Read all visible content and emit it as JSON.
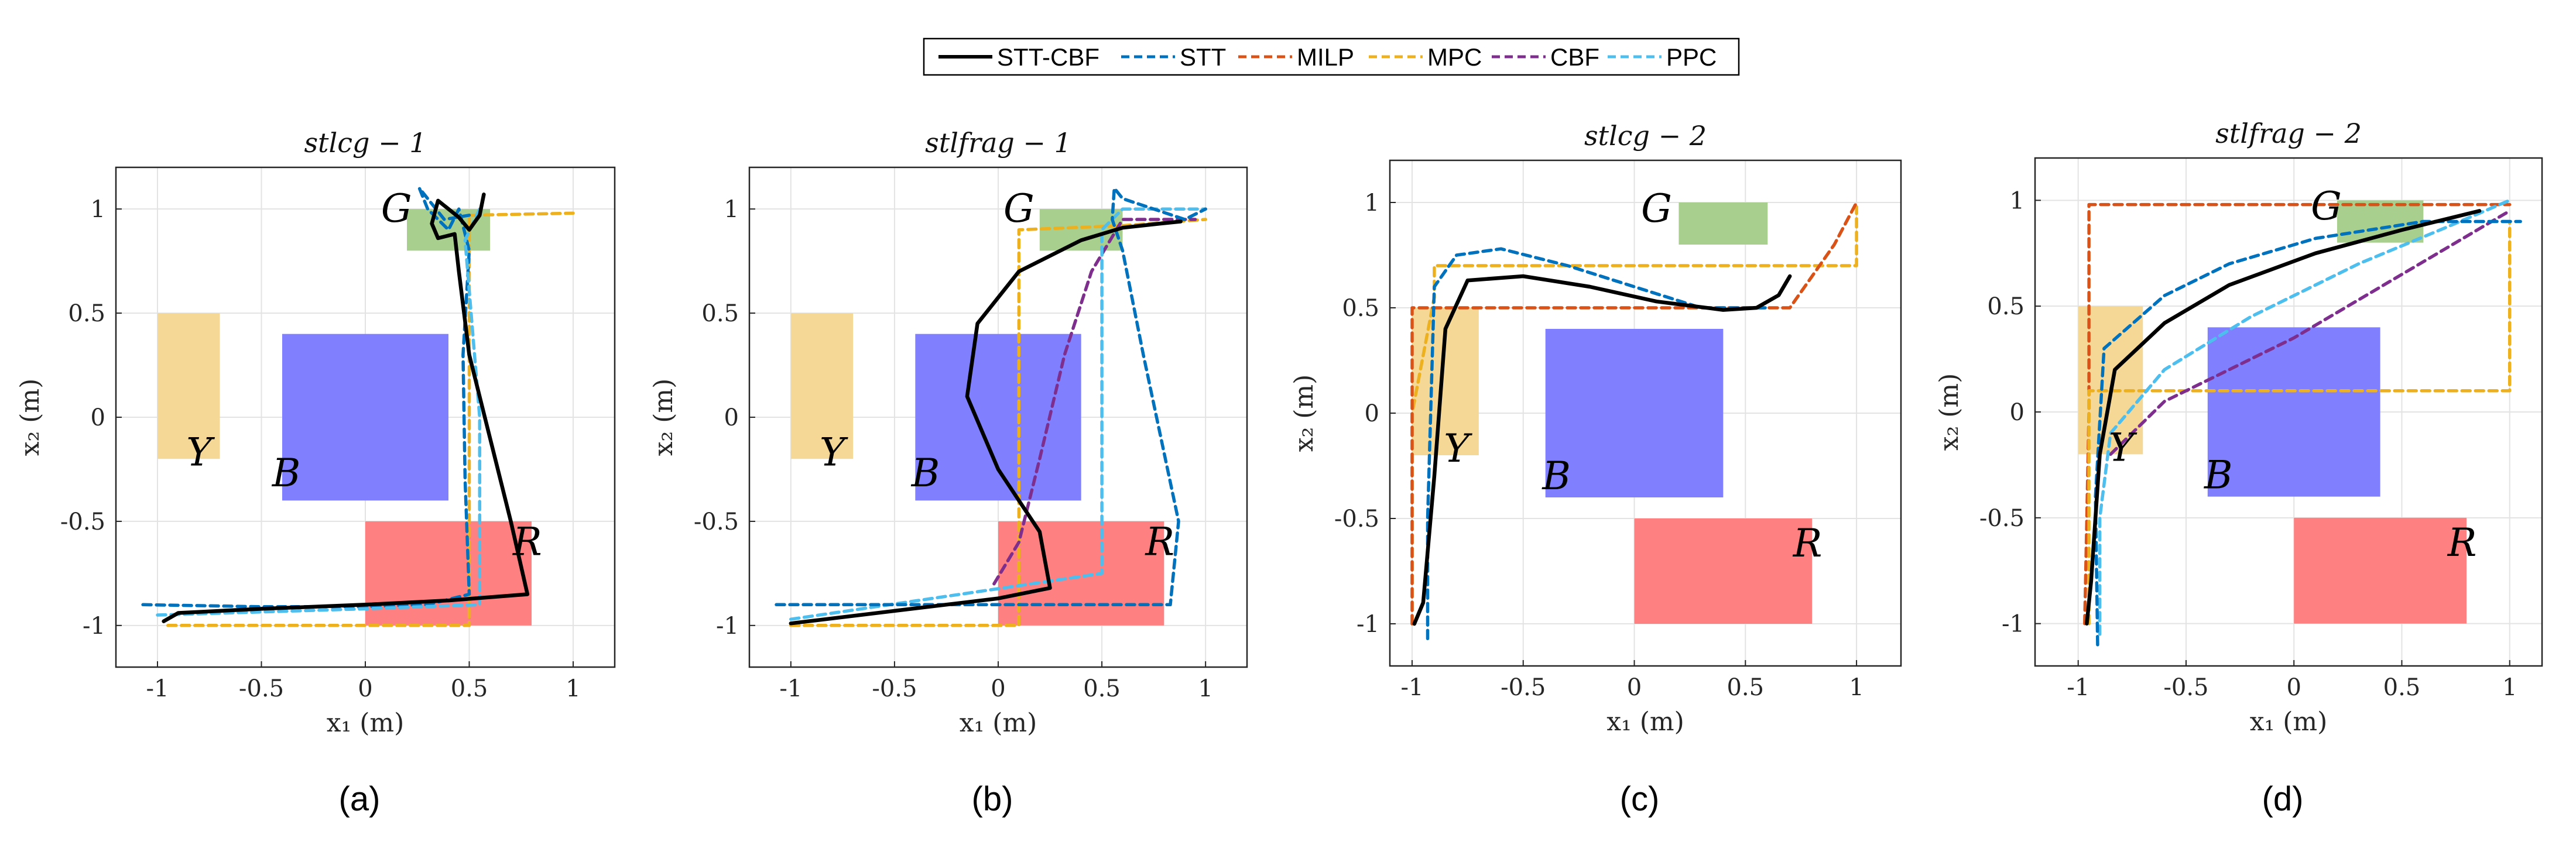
{
  "legend": {
    "entries": [
      {
        "name": "STT-CBF",
        "color": "#000000",
        "dash": "solid"
      },
      {
        "name": "STT",
        "color": "#0072BD",
        "dash": "dash"
      },
      {
        "name": "MILP",
        "color": "#D95319",
        "dash": "dash"
      },
      {
        "name": "MPC",
        "color": "#EDB120",
        "dash": "dash"
      },
      {
        "name": "CBF",
        "color": "#7E2F8E",
        "dash": "dash"
      },
      {
        "name": "PPC",
        "color": "#4DBEEE",
        "dash": "dash"
      }
    ]
  },
  "chart_data": [
    {
      "type": "line",
      "title": "stlcg − 1",
      "caption": "(a)",
      "xlabel": "x₁ (m)",
      "ylabel": "x₂ (m)",
      "xlim": [
        -1.2,
        1.2
      ],
      "ylim": [
        -1.2,
        1.2
      ],
      "xticks": [
        -1,
        -0.5,
        0,
        0.5,
        1
      ],
      "yticks": [
        -1,
        -0.5,
        0,
        0.5,
        1
      ],
      "grid": true,
      "regions": [
        {
          "label": "G",
          "x": [
            0.2,
            0.6
          ],
          "y": [
            0.8,
            1.0
          ],
          "color": "#A9CF8E",
          "label_pos": [
            0.15,
            1.0
          ]
        },
        {
          "label": "Y",
          "x": [
            -1.0,
            -0.7
          ],
          "y": [
            -0.2,
            0.5
          ],
          "color": "#F5D895",
          "label_pos": [
            -0.8,
            -0.17
          ]
        },
        {
          "label": "B",
          "x": [
            -0.4,
            0.4
          ],
          "y": [
            -0.4,
            0.4
          ],
          "color": "#8080FF",
          "label_pos": [
            -0.38,
            -0.27
          ]
        },
        {
          "label": "R",
          "x": [
            0.0,
            0.8
          ],
          "y": [
            -1.0,
            -0.5
          ],
          "color": "#FF8080",
          "label_pos": [
            0.78,
            -0.6
          ]
        }
      ],
      "series": [
        {
          "name": "MPC",
          "x": [
            -0.95,
            0.5,
            0.5,
            0.5,
            1.0
          ],
          "y": [
            -1.0,
            -1.0,
            0.0,
            0.97,
            0.98
          ]
        },
        {
          "name": "STT",
          "x": [
            -1.07,
            -0.5,
            0.0,
            0.3,
            0.5,
            0.48,
            0.47,
            0.5,
            0.45,
            0.4,
            0.3,
            0.26,
            0.38,
            0.5
          ],
          "y": [
            -0.9,
            -0.91,
            -0.91,
            -0.9,
            -0.85,
            -0.3,
            0.3,
            0.8,
            1.0,
            0.9,
            1.0,
            1.1,
            0.95,
            0.97
          ]
        },
        {
          "name": "PPC",
          "x": [
            -1.0,
            0.0,
            0.55,
            0.55,
            0.48,
            0.55
          ],
          "y": [
            -0.95,
            -0.92,
            -0.9,
            0.0,
            0.85,
            1.0
          ]
        },
        {
          "name": "STT-CBF",
          "x": [
            -0.97,
            -0.9,
            -0.5,
            0.0,
            0.4,
            0.78,
            0.7,
            0.6,
            0.5,
            0.45,
            0.43,
            0.35,
            0.32,
            0.35,
            0.45,
            0.5,
            0.55,
            0.57
          ],
          "y": [
            -0.98,
            -0.94,
            -0.92,
            -0.9,
            -0.88,
            -0.85,
            -0.5,
            -0.1,
            0.3,
            0.7,
            0.88,
            0.86,
            0.93,
            1.04,
            0.96,
            0.9,
            0.97,
            1.07
          ]
        }
      ]
    },
    {
      "type": "line",
      "title": "stlfrag − 1",
      "caption": "(b)",
      "xlabel": "x₁ (m)",
      "ylabel": "x₂ (m)",
      "xlim": [
        -1.2,
        1.2
      ],
      "ylim": [
        -1.2,
        1.2
      ],
      "xticks": [
        -1,
        -0.5,
        0,
        0.5,
        1
      ],
      "yticks": [
        -1,
        -0.5,
        0,
        0.5,
        1
      ],
      "grid": true,
      "regions": [
        {
          "label": "G",
          "x": [
            0.2,
            0.6
          ],
          "y": [
            0.8,
            1.0
          ],
          "color": "#A9CF8E",
          "label_pos": [
            0.1,
            1.0
          ]
        },
        {
          "label": "Y",
          "x": [
            -1.0,
            -0.7
          ],
          "y": [
            -0.2,
            0.5
          ],
          "color": "#F5D895",
          "label_pos": [
            -0.8,
            -0.17
          ]
        },
        {
          "label": "B",
          "x": [
            -0.4,
            0.4
          ],
          "y": [
            -0.4,
            0.4
          ],
          "color": "#8080FF",
          "label_pos": [
            -0.35,
            -0.27
          ]
        },
        {
          "label": "R",
          "x": [
            0.0,
            0.8
          ],
          "y": [
            -1.0,
            -0.5
          ],
          "color": "#FF8080",
          "label_pos": [
            0.78,
            -0.6
          ]
        }
      ],
      "series": [
        {
          "name": "MPC",
          "x": [
            -1.0,
            0.1,
            0.1,
            0.1,
            0.1,
            0.6,
            1.0
          ],
          "y": [
            -1.0,
            -1.0,
            -0.5,
            0.0,
            0.9,
            0.92,
            0.95
          ]
        },
        {
          "name": "CBF",
          "x": [
            -0.02,
            0.1,
            0.2,
            0.32,
            0.45,
            0.6,
            0.95
          ],
          "y": [
            -0.8,
            -0.6,
            -0.2,
            0.3,
            0.7,
            0.95,
            0.95
          ]
        },
        {
          "name": "PPC",
          "x": [
            -1.0,
            0.5,
            0.5,
            0.5,
            0.6,
            1.0
          ],
          "y": [
            -0.97,
            -0.75,
            -0.3,
            0.9,
            1.0,
            1.0
          ]
        },
        {
          "name": "STT",
          "x": [
            -1.07,
            -0.5,
            0.0,
            0.5,
            0.83,
            0.87,
            0.7,
            0.6,
            0.55,
            0.56,
            0.6,
            0.9,
            1.0
          ],
          "y": [
            -0.9,
            -0.9,
            -0.9,
            -0.9,
            -0.9,
            -0.5,
            0.3,
            0.8,
            0.95,
            1.1,
            1.05,
            0.95,
            1.0
          ]
        },
        {
          "name": "STT-CBF",
          "x": [
            -1.0,
            -0.5,
            0.0,
            0.25,
            0.2,
            0.0,
            -0.15,
            -0.1,
            0.1,
            0.4,
            0.6,
            0.78,
            0.88
          ],
          "y": [
            -0.99,
            -0.93,
            -0.87,
            -0.82,
            -0.55,
            -0.25,
            0.1,
            0.45,
            0.7,
            0.85,
            0.91,
            0.93,
            0.94
          ]
        }
      ]
    },
    {
      "type": "line",
      "title": "stlcg − 2",
      "caption": "(c)",
      "xlabel": "x₁ (m)",
      "ylabel": "x₂ (m)",
      "xlim": [
        -1.1,
        1.2
      ],
      "ylim": [
        -1.2,
        1.2
      ],
      "xticks": [
        -1,
        -0.5,
        0,
        0.5,
        1
      ],
      "yticks": [
        -1,
        -0.5,
        0,
        0.5,
        1
      ],
      "grid": true,
      "regions": [
        {
          "label": "G",
          "x": [
            0.2,
            0.6
          ],
          "y": [
            0.8,
            1.0
          ],
          "color": "#A9CF8E",
          "label_pos": [
            0.1,
            0.97
          ]
        },
        {
          "label": "Y",
          "x": [
            -1.0,
            -0.7
          ],
          "y": [
            -0.2,
            0.5
          ],
          "color": "#F5D895",
          "label_pos": [
            -0.8,
            -0.17
          ]
        },
        {
          "label": "B",
          "x": [
            -0.4,
            0.4
          ],
          "y": [
            -0.4,
            0.4
          ],
          "color": "#8080FF",
          "label_pos": [
            -0.35,
            -0.3
          ]
        },
        {
          "label": "R",
          "x": [
            0.0,
            0.8
          ],
          "y": [
            -1.0,
            -0.5
          ],
          "color": "#FF8080",
          "label_pos": [
            0.78,
            -0.62
          ]
        }
      ],
      "series": [
        {
          "name": "MPC",
          "x": [
            -1.0,
            -1.0,
            -0.9,
            -0.9,
            1.0,
            1.0
          ],
          "y": [
            -1.0,
            0.0,
            0.55,
            0.7,
            0.7,
            0.98
          ]
        },
        {
          "name": "MILP",
          "x": [
            -1.0,
            -1.0,
            0.7,
            0.8,
            0.9,
            1.0
          ],
          "y": [
            -1.0,
            0.5,
            0.5,
            0.65,
            0.8,
            1.0
          ]
        },
        {
          "name": "STT",
          "x": [
            -0.93,
            -0.93,
            -0.9,
            -0.8,
            -0.6,
            -0.3,
            0.0,
            0.3,
            0.6
          ],
          "y": [
            -1.07,
            -0.5,
            0.6,
            0.75,
            0.78,
            0.7,
            0.6,
            0.5,
            0.5
          ]
        },
        {
          "name": "STT-CBF",
          "x": [
            -0.99,
            -0.95,
            -0.9,
            -0.85,
            -0.75,
            -0.5,
            -0.2,
            0.1,
            0.4,
            0.55,
            0.65,
            0.7
          ],
          "y": [
            -1.0,
            -0.9,
            -0.3,
            0.4,
            0.63,
            0.65,
            0.6,
            0.53,
            0.49,
            0.5,
            0.56,
            0.65
          ]
        }
      ]
    },
    {
      "type": "line",
      "title": "stlfrag − 2",
      "caption": "(d)",
      "xlabel": "x₁ (m)",
      "ylabel": "x₂ (m)",
      "xlim": [
        -1.2,
        1.15
      ],
      "ylim": [
        -1.2,
        1.2
      ],
      "xticks": [
        -1,
        -0.5,
        0,
        0.5,
        1
      ],
      "yticks": [
        -1,
        -0.5,
        0,
        0.5,
        1
      ],
      "grid": true,
      "regions": [
        {
          "label": "G",
          "x": [
            0.2,
            0.6
          ],
          "y": [
            0.8,
            1.0
          ],
          "color": "#A9CF8E",
          "label_pos": [
            0.15,
            0.97
          ]
        },
        {
          "label": "Y",
          "x": [
            -1.0,
            -0.7
          ],
          "y": [
            -0.2,
            0.5
          ],
          "color": "#F5D895",
          "label_pos": [
            -0.8,
            -0.17
          ]
        },
        {
          "label": "B",
          "x": [
            -0.4,
            0.4
          ],
          "y": [
            -0.4,
            0.4
          ],
          "color": "#8080FF",
          "label_pos": [
            -0.35,
            -0.3
          ]
        },
        {
          "label": "R",
          "x": [
            0.0,
            0.8
          ],
          "y": [
            -1.0,
            -0.5
          ],
          "color": "#FF8080",
          "label_pos": [
            0.78,
            -0.62
          ]
        }
      ],
      "series": [
        {
          "name": "MILP",
          "x": [
            -0.97,
            -0.95,
            -0.95,
            0.8,
            1.0
          ],
          "y": [
            -1.0,
            0.0,
            0.98,
            0.98,
            0.98
          ]
        },
        {
          "name": "MPC",
          "x": [
            -0.95,
            -0.95,
            1.0,
            1.0,
            0.95
          ],
          "y": [
            -1.0,
            0.1,
            0.1,
            0.9,
            0.9
          ]
        },
        {
          "name": "CBF",
          "x": [
            -0.85,
            -0.6,
            0.0,
            0.5,
            1.0
          ],
          "y": [
            -0.2,
            0.05,
            0.35,
            0.65,
            0.95
          ]
        },
        {
          "name": "PPC",
          "x": [
            -0.9,
            -0.9,
            -0.85,
            -0.6,
            -0.2,
            0.3,
            0.7,
            1.0
          ],
          "y": [
            -1.05,
            -0.5,
            -0.1,
            0.2,
            0.45,
            0.7,
            0.87,
            1.0
          ]
        },
        {
          "name": "STT",
          "x": [
            -0.91,
            -0.92,
            -0.88,
            -0.6,
            -0.3,
            0.1,
            0.6,
            1.05
          ],
          "y": [
            -1.1,
            -0.4,
            0.3,
            0.55,
            0.7,
            0.82,
            0.9,
            0.9
          ]
        },
        {
          "name": "STT-CBF",
          "x": [
            -0.96,
            -0.94,
            -0.9,
            -0.83,
            -0.6,
            -0.3,
            0.1,
            0.5,
            0.86
          ],
          "y": [
            -1.0,
            -0.8,
            -0.2,
            0.2,
            0.42,
            0.6,
            0.75,
            0.86,
            0.95
          ]
        }
      ]
    }
  ]
}
